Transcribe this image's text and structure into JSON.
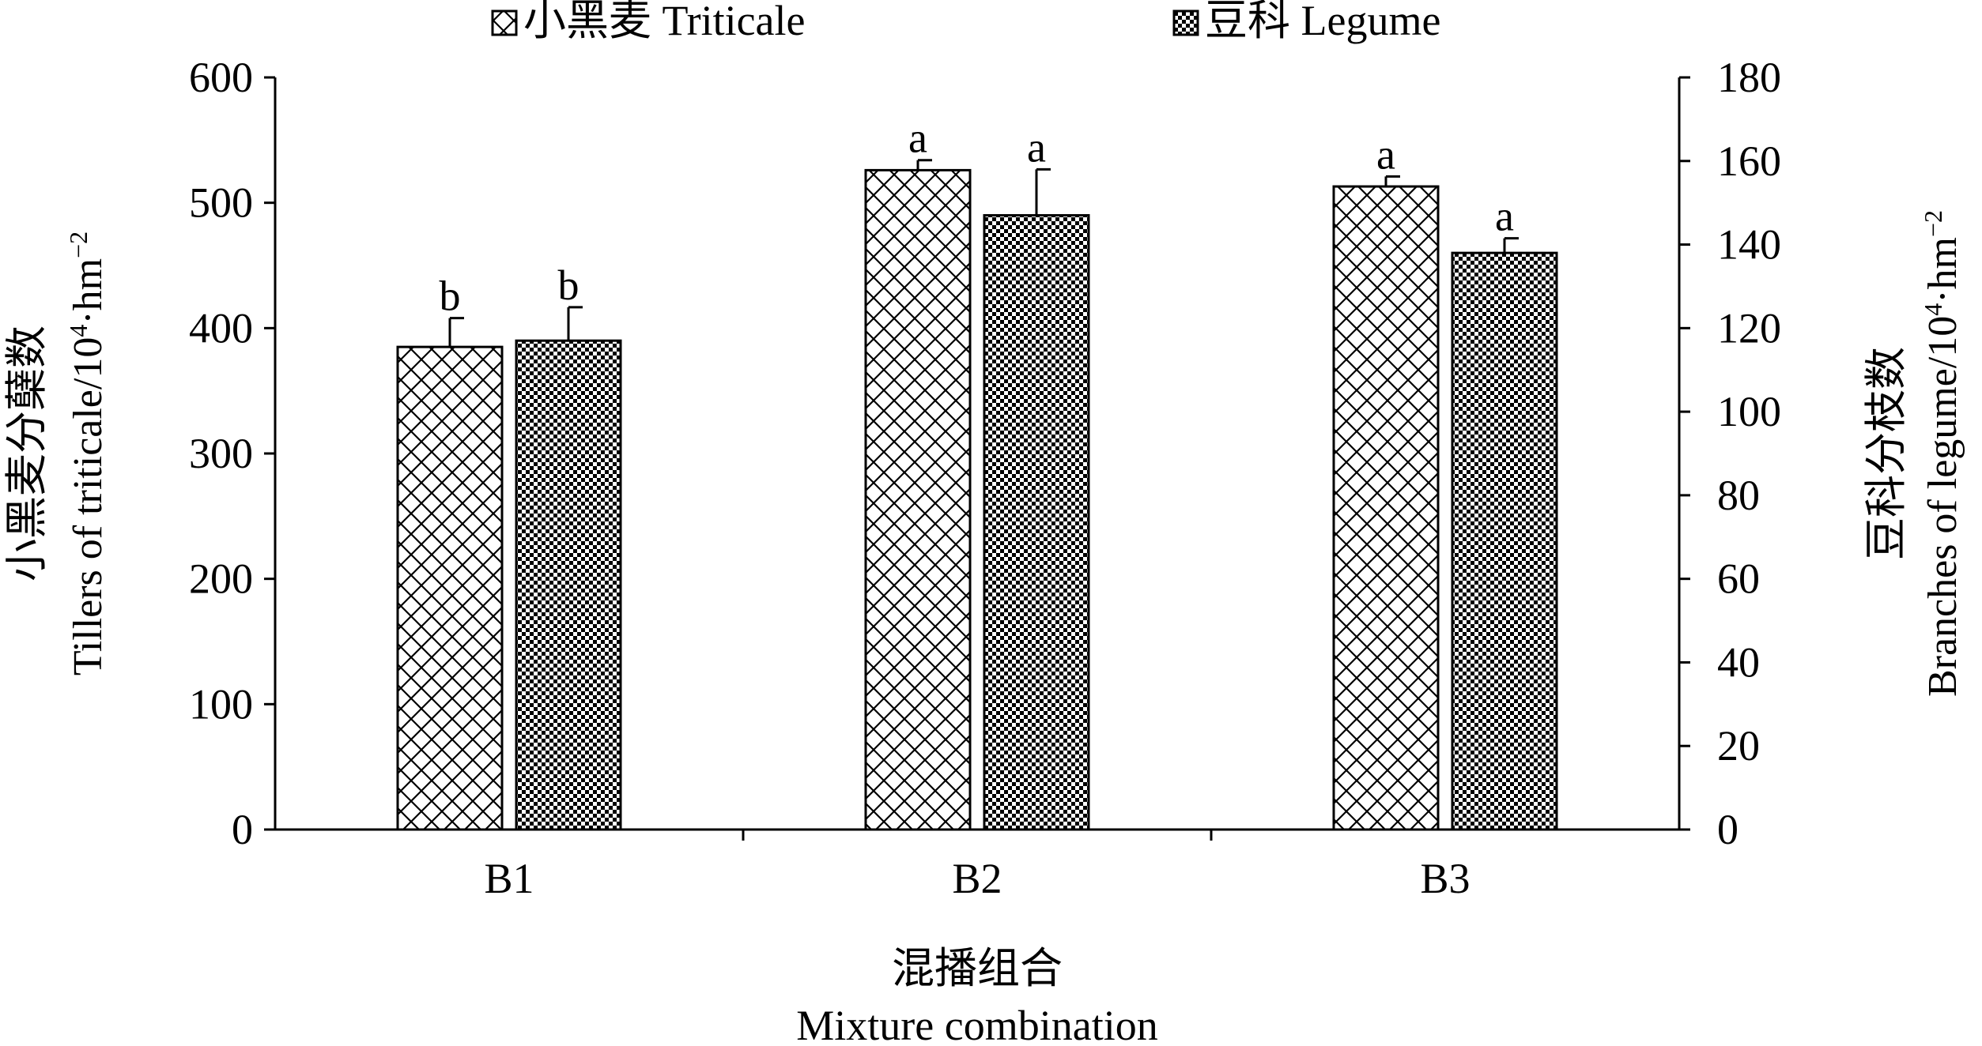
{
  "chart_data": {
    "type": "bar",
    "categories": [
      "B1",
      "B2",
      "B3"
    ],
    "legend": {
      "placement": "top",
      "entries": [
        "小黑麦 Triticale",
        "豆科 Legume"
      ]
    },
    "x_axis": {
      "label_zh": "混播组合",
      "label_en": "Mixture combination"
    },
    "y_left": {
      "label_zh": "小黑麦分蘖数",
      "label_en_prefix": "Tillers of triticale/10",
      "label_en_sup1": "4",
      "label_en_mid": "·hm",
      "label_en_sup2": "−2",
      "ylim": [
        0,
        600
      ],
      "ticks": [
        0,
        100,
        200,
        300,
        400,
        500,
        600
      ]
    },
    "y_right": {
      "label_zh": "豆科分枝数",
      "label_en_prefix": "Branches of legume/10",
      "label_en_sup1": "4",
      "label_en_mid": "·hm",
      "label_en_sup2": "−2",
      "ylim": [
        0,
        180
      ],
      "ticks": [
        0,
        20,
        40,
        60,
        80,
        100,
        120,
        140,
        160,
        180
      ]
    },
    "series": [
      {
        "name": "小黑麦 Triticale",
        "axis": "left",
        "pattern": "crosshatch",
        "values": [
          385,
          526,
          513
        ],
        "errors": [
          23,
          8,
          8
        ],
        "letters": [
          "b",
          "a",
          "a"
        ]
      },
      {
        "name": "豆科 Legume",
        "axis": "right",
        "pattern": "dots",
        "values": [
          117,
          147,
          138
        ],
        "errors": [
          8,
          11,
          3.5
        ],
        "letters": [
          "b",
          "a",
          "a"
        ]
      }
    ],
    "grid": false
  }
}
